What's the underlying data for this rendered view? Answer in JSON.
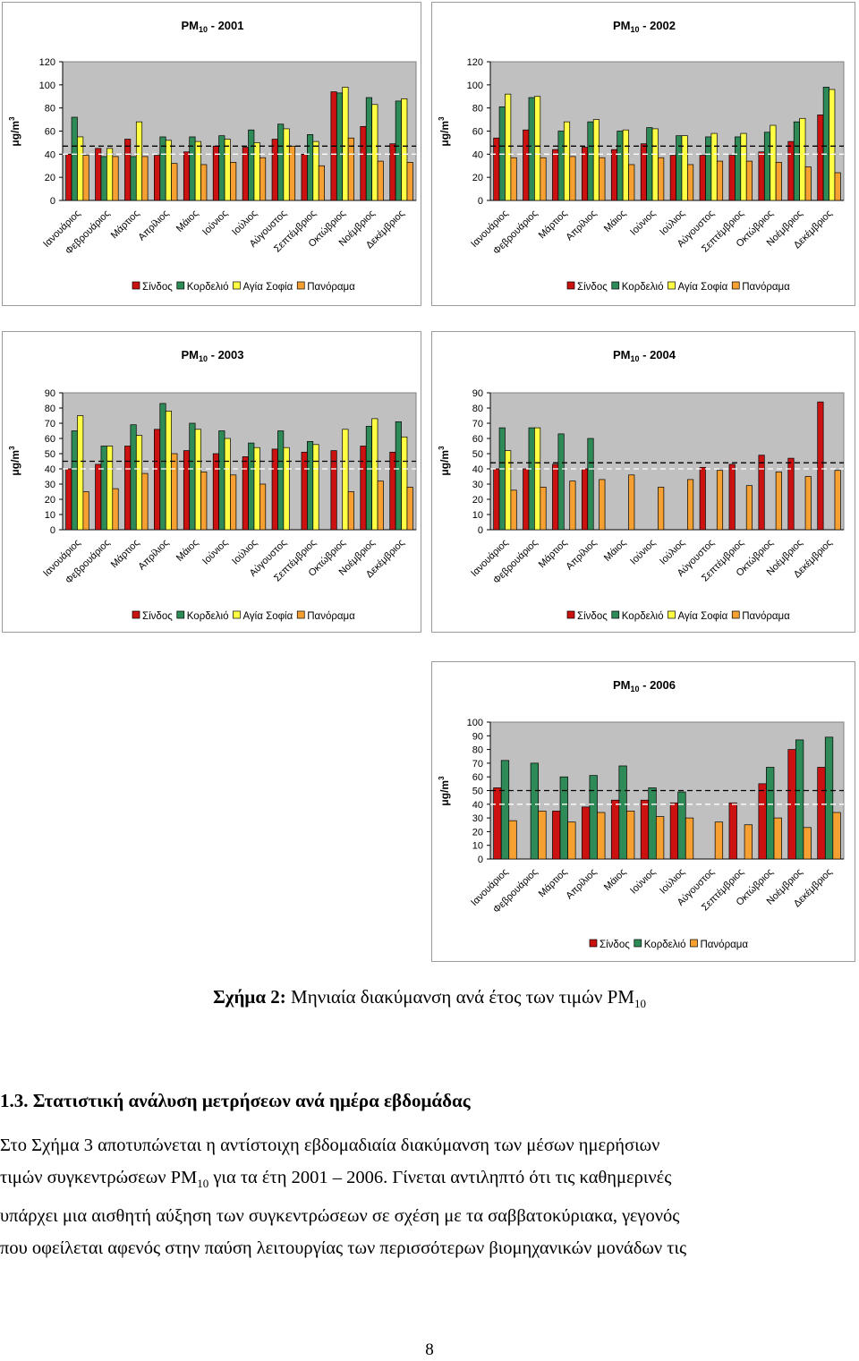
{
  "months": [
    "Ιανουάριος",
    "Φεβρουάριος",
    "Μάρτιος",
    "Απρίλιος",
    "Μάιος",
    "Ιούνιος",
    "Ιούλιος",
    "Αύγουστος",
    "Σεπτέμβριος",
    "Οκτώβριος",
    "Νοέμβριος",
    "Δεκέμβριος"
  ],
  "colors": {
    "Σίνδος": "#cc1111",
    "Κορδελιό": "#2e8b57",
    "Αγία Σοφία": "#ffff44",
    "Πανόραμα": "#f5a030",
    "plot_bg": "#c0c0c0"
  },
  "chart_data": [
    {
      "type": "bar",
      "title_main": "PM",
      "title_sub": "10",
      "title_year": " - 2001",
      "ylabel": "μg/m",
      "ylabel_sup": "3",
      "ylim": [
        0,
        120
      ],
      "yticks": [
        0,
        20,
        40,
        60,
        80,
        100,
        120
      ],
      "reference_lines": [
        47,
        40
      ],
      "series": [
        {
          "name": "Σίνδος",
          "values": [
            40,
            45,
            53,
            39,
            42,
            47,
            46,
            53,
            40,
            94,
            64,
            49
          ]
        },
        {
          "name": "Κορδελιό",
          "values": [
            72,
            38,
            38,
            55,
            55,
            56,
            61,
            66,
            57,
            93,
            89,
            86
          ]
        },
        {
          "name": "Αγία Σοφία",
          "values": [
            55,
            45,
            68,
            52,
            51,
            53,
            50,
            62,
            51,
            98,
            83,
            88
          ]
        },
        {
          "name": "Πανόραμα",
          "values": [
            39,
            38,
            38,
            32,
            31,
            33,
            37,
            47,
            30,
            54,
            34,
            33
          ]
        }
      ]
    },
    {
      "type": "bar",
      "title_main": "PM",
      "title_sub": "10",
      "title_year": " - 2002",
      "ylabel": "μg/m",
      "ylabel_sup": "3",
      "ylim": [
        0,
        120
      ],
      "yticks": [
        0,
        20,
        40,
        60,
        80,
        100,
        120
      ],
      "reference_lines": [
        47,
        40
      ],
      "series": [
        {
          "name": "Σίνδος",
          "values": [
            54,
            61,
            44,
            46,
            44,
            49,
            39,
            39,
            39,
            42,
            51,
            74
          ]
        },
        {
          "name": "Κορδελιό",
          "values": [
            81,
            89,
            60,
            68,
            60,
            63,
            56,
            55,
            55,
            59,
            68,
            98
          ]
        },
        {
          "name": "Αγία Σοφία",
          "values": [
            92,
            90,
            68,
            70,
            61,
            62,
            56,
            58,
            58,
            65,
            71,
            96
          ]
        },
        {
          "name": "Πανόραμα",
          "values": [
            37,
            37,
            38,
            37,
            31,
            37,
            31,
            34,
            34,
            33,
            29,
            24
          ]
        }
      ]
    },
    {
      "type": "bar",
      "title_main": "PM",
      "title_sub": "10",
      "title_year": " - 2003",
      "ylabel": "μg/m",
      "ylabel_sup": "3",
      "ylim": [
        0,
        90
      ],
      "yticks": [
        0,
        10,
        20,
        30,
        40,
        50,
        60,
        70,
        80,
        90
      ],
      "reference_lines": [
        45,
        40
      ],
      "series": [
        {
          "name": "Σίνδος",
          "values": [
            40,
            43,
            55,
            66,
            52,
            50,
            48,
            53,
            51,
            52,
            55,
            51
          ]
        },
        {
          "name": "Κορδελιό",
          "values": [
            65,
            55,
            69,
            83,
            70,
            65,
            57,
            65,
            58,
            null,
            68,
            71
          ]
        },
        {
          "name": "Αγία Σοφία",
          "values": [
            75,
            55,
            62,
            78,
            66,
            60,
            54,
            54,
            56,
            66,
            73,
            61
          ]
        },
        {
          "name": "Πανόραμα",
          "values": [
            25,
            27,
            37,
            50,
            38,
            36,
            30,
            null,
            null,
            25,
            32,
            28
          ]
        }
      ]
    },
    {
      "type": "bar",
      "title_main": "PM",
      "title_sub": "10",
      "title_year": " - 2004",
      "ylabel": "μg/m",
      "ylabel_sup": "3",
      "ylim": [
        0,
        90
      ],
      "yticks": [
        0,
        10,
        20,
        30,
        40,
        50,
        60,
        70,
        80,
        90
      ],
      "reference_lines": [
        44,
        40
      ],
      "series": [
        {
          "name": "Σίνδος",
          "values": [
            40,
            40,
            43,
            40,
            null,
            null,
            null,
            41,
            43,
            49,
            47,
            84
          ]
        },
        {
          "name": "Κορδελιό",
          "values": [
            67,
            67,
            63,
            60,
            null,
            null,
            null,
            null,
            null,
            null,
            null,
            null
          ]
        },
        {
          "name": "Αγία Σοφία",
          "values": [
            52,
            67,
            null,
            null,
            null,
            null,
            null,
            null,
            null,
            null,
            null,
            null
          ]
        },
        {
          "name": "Πανόραμα",
          "values": [
            26,
            28,
            32,
            33,
            36,
            28,
            33,
            39,
            29,
            38,
            35,
            39
          ]
        }
      ]
    },
    {
      "type": "bar",
      "title_main": "PM",
      "title_sub": "10",
      "title_year": " - 2006",
      "ylabel": "μg/m",
      "ylabel_sup": "3",
      "ylim": [
        0,
        100
      ],
      "yticks": [
        0,
        10,
        20,
        30,
        40,
        50,
        60,
        70,
        80,
        90,
        100
      ],
      "reference_lines": [
        50,
        40
      ],
      "series": [
        {
          "name": "Σίνδος",
          "values": [
            52,
            null,
            35,
            38,
            43,
            43,
            41,
            null,
            41,
            55,
            80,
            67
          ]
        },
        {
          "name": "Κορδελιό",
          "values": [
            72,
            70,
            60,
            61,
            68,
            52,
            49,
            null,
            null,
            67,
            87,
            89
          ]
        },
        {
          "name": "Πανόραμα",
          "values": [
            28,
            35,
            27,
            34,
            35,
            31,
            30,
            27,
            25,
            30,
            23,
            34
          ]
        }
      ]
    }
  ],
  "caption": {
    "label": "Σχήμα 2:",
    "text": " Μηνιαία διακύμανση ανά έτος των τιμών PM",
    "sub": "10"
  },
  "section": {
    "heading": "1.3. Στατιστική ανάλυση μετρήσεων ανά ημέρα εβδομάδας"
  },
  "paragraph": {
    "line1": "Στο Σχήμα 3 αποτυπώνεται η αντίστοιχη εβδομαδιαία διακύμανση των μέσων ημερήσιων",
    "line2a": "τιμών συγκεντρώσεων PM",
    "line2sub": "10",
    "line2b": " για τα έτη 2001 – 2006. Γίνεται αντιληπτό ότι τις καθημερινές",
    "line3": "υπάρχει μια αισθητή αύξηση των συγκεντρώσεων σε σχέση με τα σαββατοκύριακα, γεγονός",
    "line4": "που οφείλεται αφενός στην παύση λειτουργίας των περισσότερων βιομηχανικών μονάδων τις"
  },
  "page_number": "8"
}
